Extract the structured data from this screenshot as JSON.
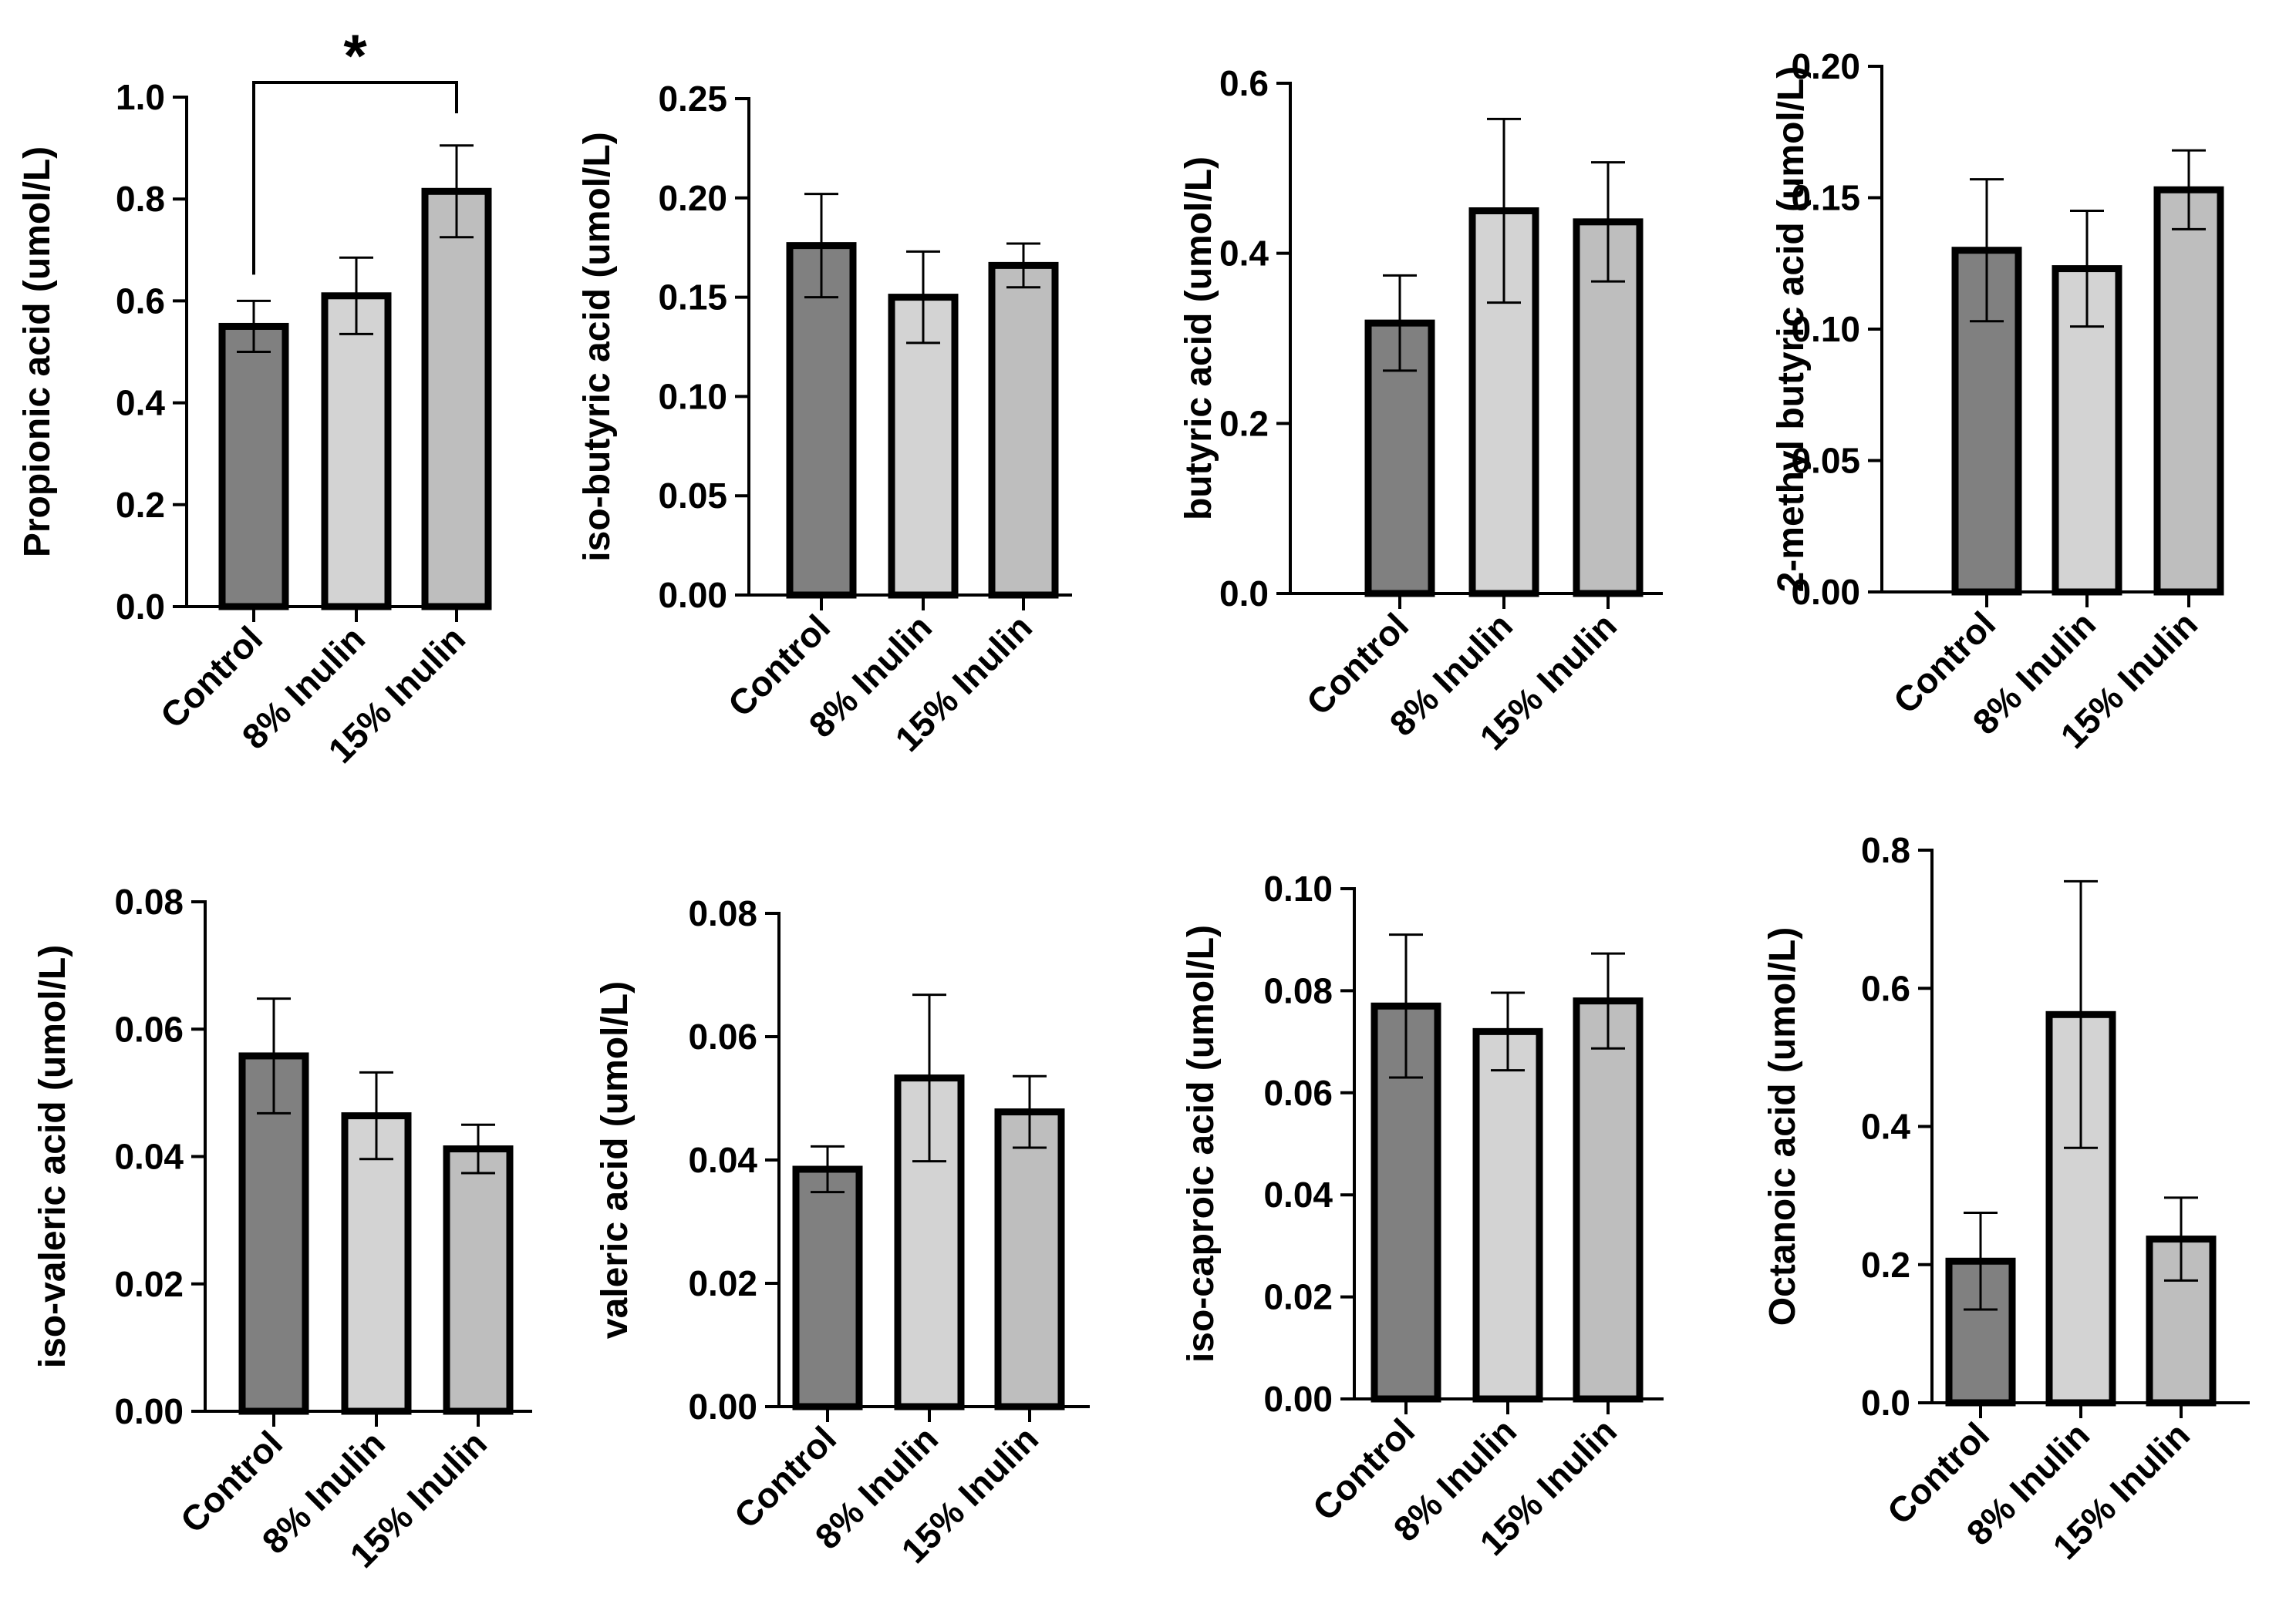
{
  "figure": {
    "bar_colors": [
      "#808080",
      "#d3d3d3",
      "#bebebe"
    ],
    "stroke_color": "#000000"
  },
  "chart_data": [
    {
      "type": "bar",
      "categories": [
        "Control",
        "8% Inulin",
        "15% Inulin"
      ],
      "values": [
        0.55,
        0.61,
        0.815
      ],
      "errors": [
        0.05,
        0.075,
        0.09
      ],
      "ylabel": "Propionic acid (umol/L)",
      "ylim": [
        0,
        1.0
      ],
      "yticks": [
        "0.0",
        "0.2",
        "0.4",
        "0.6",
        "0.8",
        "1.0"
      ],
      "significance": [
        {
          "from": 0,
          "to": 2,
          "label": "*"
        }
      ]
    },
    {
      "type": "bar",
      "categories": [
        "Control",
        "8% Inulin",
        "15% Inulin"
      ],
      "values": [
        0.176,
        0.15,
        0.166
      ],
      "errors": [
        0.026,
        0.023,
        0.011
      ],
      "ylabel": "iso-butyric acid (umol/L)",
      "ylim": [
        0,
        0.25
      ],
      "yticks": [
        "0.00",
        "0.05",
        "0.10",
        "0.15",
        "0.20",
        "0.25"
      ]
    },
    {
      "type": "bar",
      "categories": [
        "Control",
        "8% Inulin",
        "15% Inulin"
      ],
      "values": [
        0.318,
        0.45,
        0.437
      ],
      "errors": [
        0.056,
        0.108,
        0.07
      ],
      "ylabel": "butyric acid (umol/L)",
      "ylim": [
        0,
        0.6
      ],
      "yticks": [
        "0.0",
        "0.2",
        "0.4",
        "0.6"
      ]
    },
    {
      "type": "bar",
      "categories": [
        "Control",
        "8% Inulin",
        "15% Inulin"
      ],
      "values": [
        0.13,
        0.123,
        0.153
      ],
      "errors": [
        0.027,
        0.022,
        0.015
      ],
      "ylabel": "2-methyl butyric acid (umol/L)",
      "ylim": [
        0,
        0.2
      ],
      "yticks": [
        "0.00",
        "0.05",
        "0.10",
        "0.15",
        "0.20"
      ]
    },
    {
      "type": "bar",
      "categories": [
        "Control",
        "8% Inulin",
        "15% Inulin"
      ],
      "values": [
        0.0558,
        0.0464,
        0.0412
      ],
      "errors": [
        0.009,
        0.0068,
        0.0038
      ],
      "ylabel": "iso-valeric acid (umol/L)",
      "ylim": [
        0,
        0.08
      ],
      "yticks": [
        "0.00",
        "0.02",
        "0.04",
        "0.06",
        "0.08"
      ]
    },
    {
      "type": "bar",
      "categories": [
        "Control",
        "8% Inulin",
        "15% Inulin"
      ],
      "values": [
        0.0385,
        0.0533,
        0.0478
      ],
      "errors": [
        0.0037,
        0.0135,
        0.0058
      ],
      "ylabel": "valeric acid (umol/L)",
      "ylim": [
        0,
        0.08
      ],
      "yticks": [
        "0.00",
        "0.02",
        "0.04",
        "0.06",
        "0.08"
      ]
    },
    {
      "type": "bar",
      "categories": [
        "Control",
        "8% Inulin",
        "15% Inulin"
      ],
      "values": [
        0.077,
        0.072,
        0.078
      ],
      "errors": [
        0.014,
        0.0076,
        0.0093
      ],
      "ylabel": "iso-caproic acid (umol/L)",
      "ylim": [
        0,
        0.1
      ],
      "yticks": [
        "0.00",
        "0.02",
        "0.04",
        "0.06",
        "0.08",
        "0.10"
      ]
    },
    {
      "type": "bar",
      "categories": [
        "Control",
        "8% Inulin",
        "15% Inulin"
      ],
      "values": [
        0.205,
        0.562,
        0.237
      ],
      "errors": [
        0.07,
        0.193,
        0.06
      ],
      "ylabel": "Octanoic acid (umol/L)",
      "ylim": [
        0,
        0.8
      ],
      "yticks": [
        "0.0",
        "0.2",
        "0.4",
        "0.6",
        "0.8"
      ]
    }
  ]
}
